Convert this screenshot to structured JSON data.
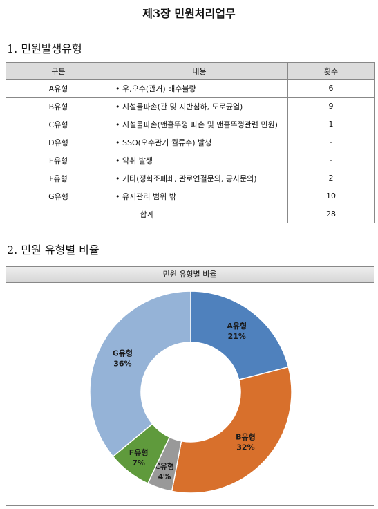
{
  "header": {
    "title": "제3장 민원처리업무"
  },
  "sections": [
    {
      "heading": "1. 민원발생유형"
    },
    {
      "heading": "2. 민원 유형별 비율"
    }
  ],
  "table": {
    "columns": [
      "구분",
      "내용",
      "횟수"
    ],
    "rows": [
      [
        "A유형",
        "• 우,오수(관거) 배수불량",
        6
      ],
      [
        "B유형",
        "• 시설물파손(관 및 지반침하, 도로균열)",
        9
      ],
      [
        "C유형",
        "• 시설물파손(맨홀뚜껑 파손 및 맨홀뚜껑관련 민원)",
        1
      ],
      [
        "D유형",
        "• SSO(오수관거 월류수) 발생",
        "-"
      ],
      [
        "E유형",
        "• 악취 발생",
        "-"
      ],
      [
        "F유형",
        "• 기타(정화조폐쇄, 관로연결문의, 공사문의)",
        2
      ],
      [
        "G유형",
        "• 유지관리 범위 밖",
        10
      ]
    ],
    "total": {
      "label": "합계",
      "count": 28
    }
  },
  "chart_data": {
    "type": "pie",
    "donut": true,
    "title": "민원 유형별 비율",
    "categories": [
      "A유형",
      "B유형",
      "C유형",
      "F유형",
      "G유형"
    ],
    "values": [
      21,
      32,
      4,
      7,
      36
    ],
    "value_labels": [
      "21%",
      "32%",
      "4%",
      "7%",
      "36%"
    ],
    "colors": [
      "#4f81bd",
      "#d8702c",
      "#999999",
      "#5f9a3c",
      "#95b3d7"
    ]
  }
}
